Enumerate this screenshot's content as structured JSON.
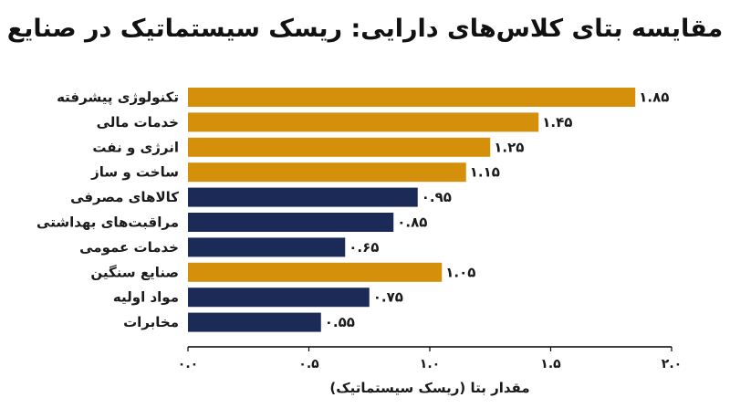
{
  "chart_data": {
    "type": "bar",
    "orientation": "horizontal",
    "title": "مقایسه بتای کلاس‌های دارایی: ریسک سیستماتیک در صنایع",
    "xlabel": "مقدار بتا (ریسک سیستماتیک)",
    "ylabel": "",
    "xlim": [
      0,
      2.0
    ],
    "xticks": [
      0.0,
      0.5,
      1.0,
      1.5,
      2.0
    ],
    "xtick_labels": [
      "۰.۰",
      "۰.۵",
      "۱.۰",
      "۱.۵",
      "۲.۰"
    ],
    "grid": false,
    "legend": "none",
    "categories": [
      "تکنولوژی پیشرفته",
      "خدمات مالی",
      "انرژی و نفت",
      "ساخت و ساز",
      "کالاهای مصرفی",
      "مراقبت‌های بهداشتی",
      "خدمات عمومی",
      "صنایع سنگین",
      "مواد اولیه",
      "مخابرات"
    ],
    "values": [
      1.85,
      1.45,
      1.25,
      1.15,
      0.95,
      0.85,
      0.65,
      1.05,
      0.75,
      0.55
    ],
    "value_labels": [
      "۱.۸۵",
      "۱.۴۵",
      "۱.۲۵",
      "۱.۱۵",
      "۰.۹۵",
      "۰.۸۵",
      "۰.۶۵",
      "۱.۰۵",
      "۰.۷۵",
      "۰.۵۵"
    ],
    "colors": {
      "high_beta": "#D4900A",
      "low_beta": "#1B2A56",
      "axis": "#000000"
    }
  }
}
